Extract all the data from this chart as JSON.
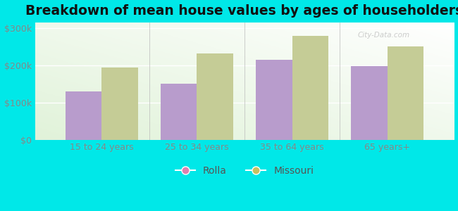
{
  "title": "Breakdown of mean house values by ages of householders",
  "categories": [
    "15 to 24 years",
    "25 to 34 years",
    "35 to 64 years",
    "65 years+"
  ],
  "rolla_values": [
    130000,
    150000,
    215000,
    197000
  ],
  "missouri_values": [
    193000,
    232000,
    278000,
    250000
  ],
  "rolla_color": "#b89ccc",
  "missouri_color": "#c5cc96",
  "background_color": "#00e8e8",
  "yticks": [
    0,
    100000,
    200000,
    300000
  ],
  "ytick_labels": [
    "$0",
    "$100k",
    "$200k",
    "$300k"
  ],
  "ylim": [
    0,
    315000
  ],
  "legend_labels": [
    "Rolla",
    "Missouri"
  ],
  "legend_marker_rolla": "#e080b0",
  "legend_marker_missouri": "#c8c060",
  "bar_width": 0.38,
  "title_fontsize": 13.5,
  "tick_fontsize": 9,
  "legend_fontsize": 10,
  "watermark": "City-Data.com"
}
